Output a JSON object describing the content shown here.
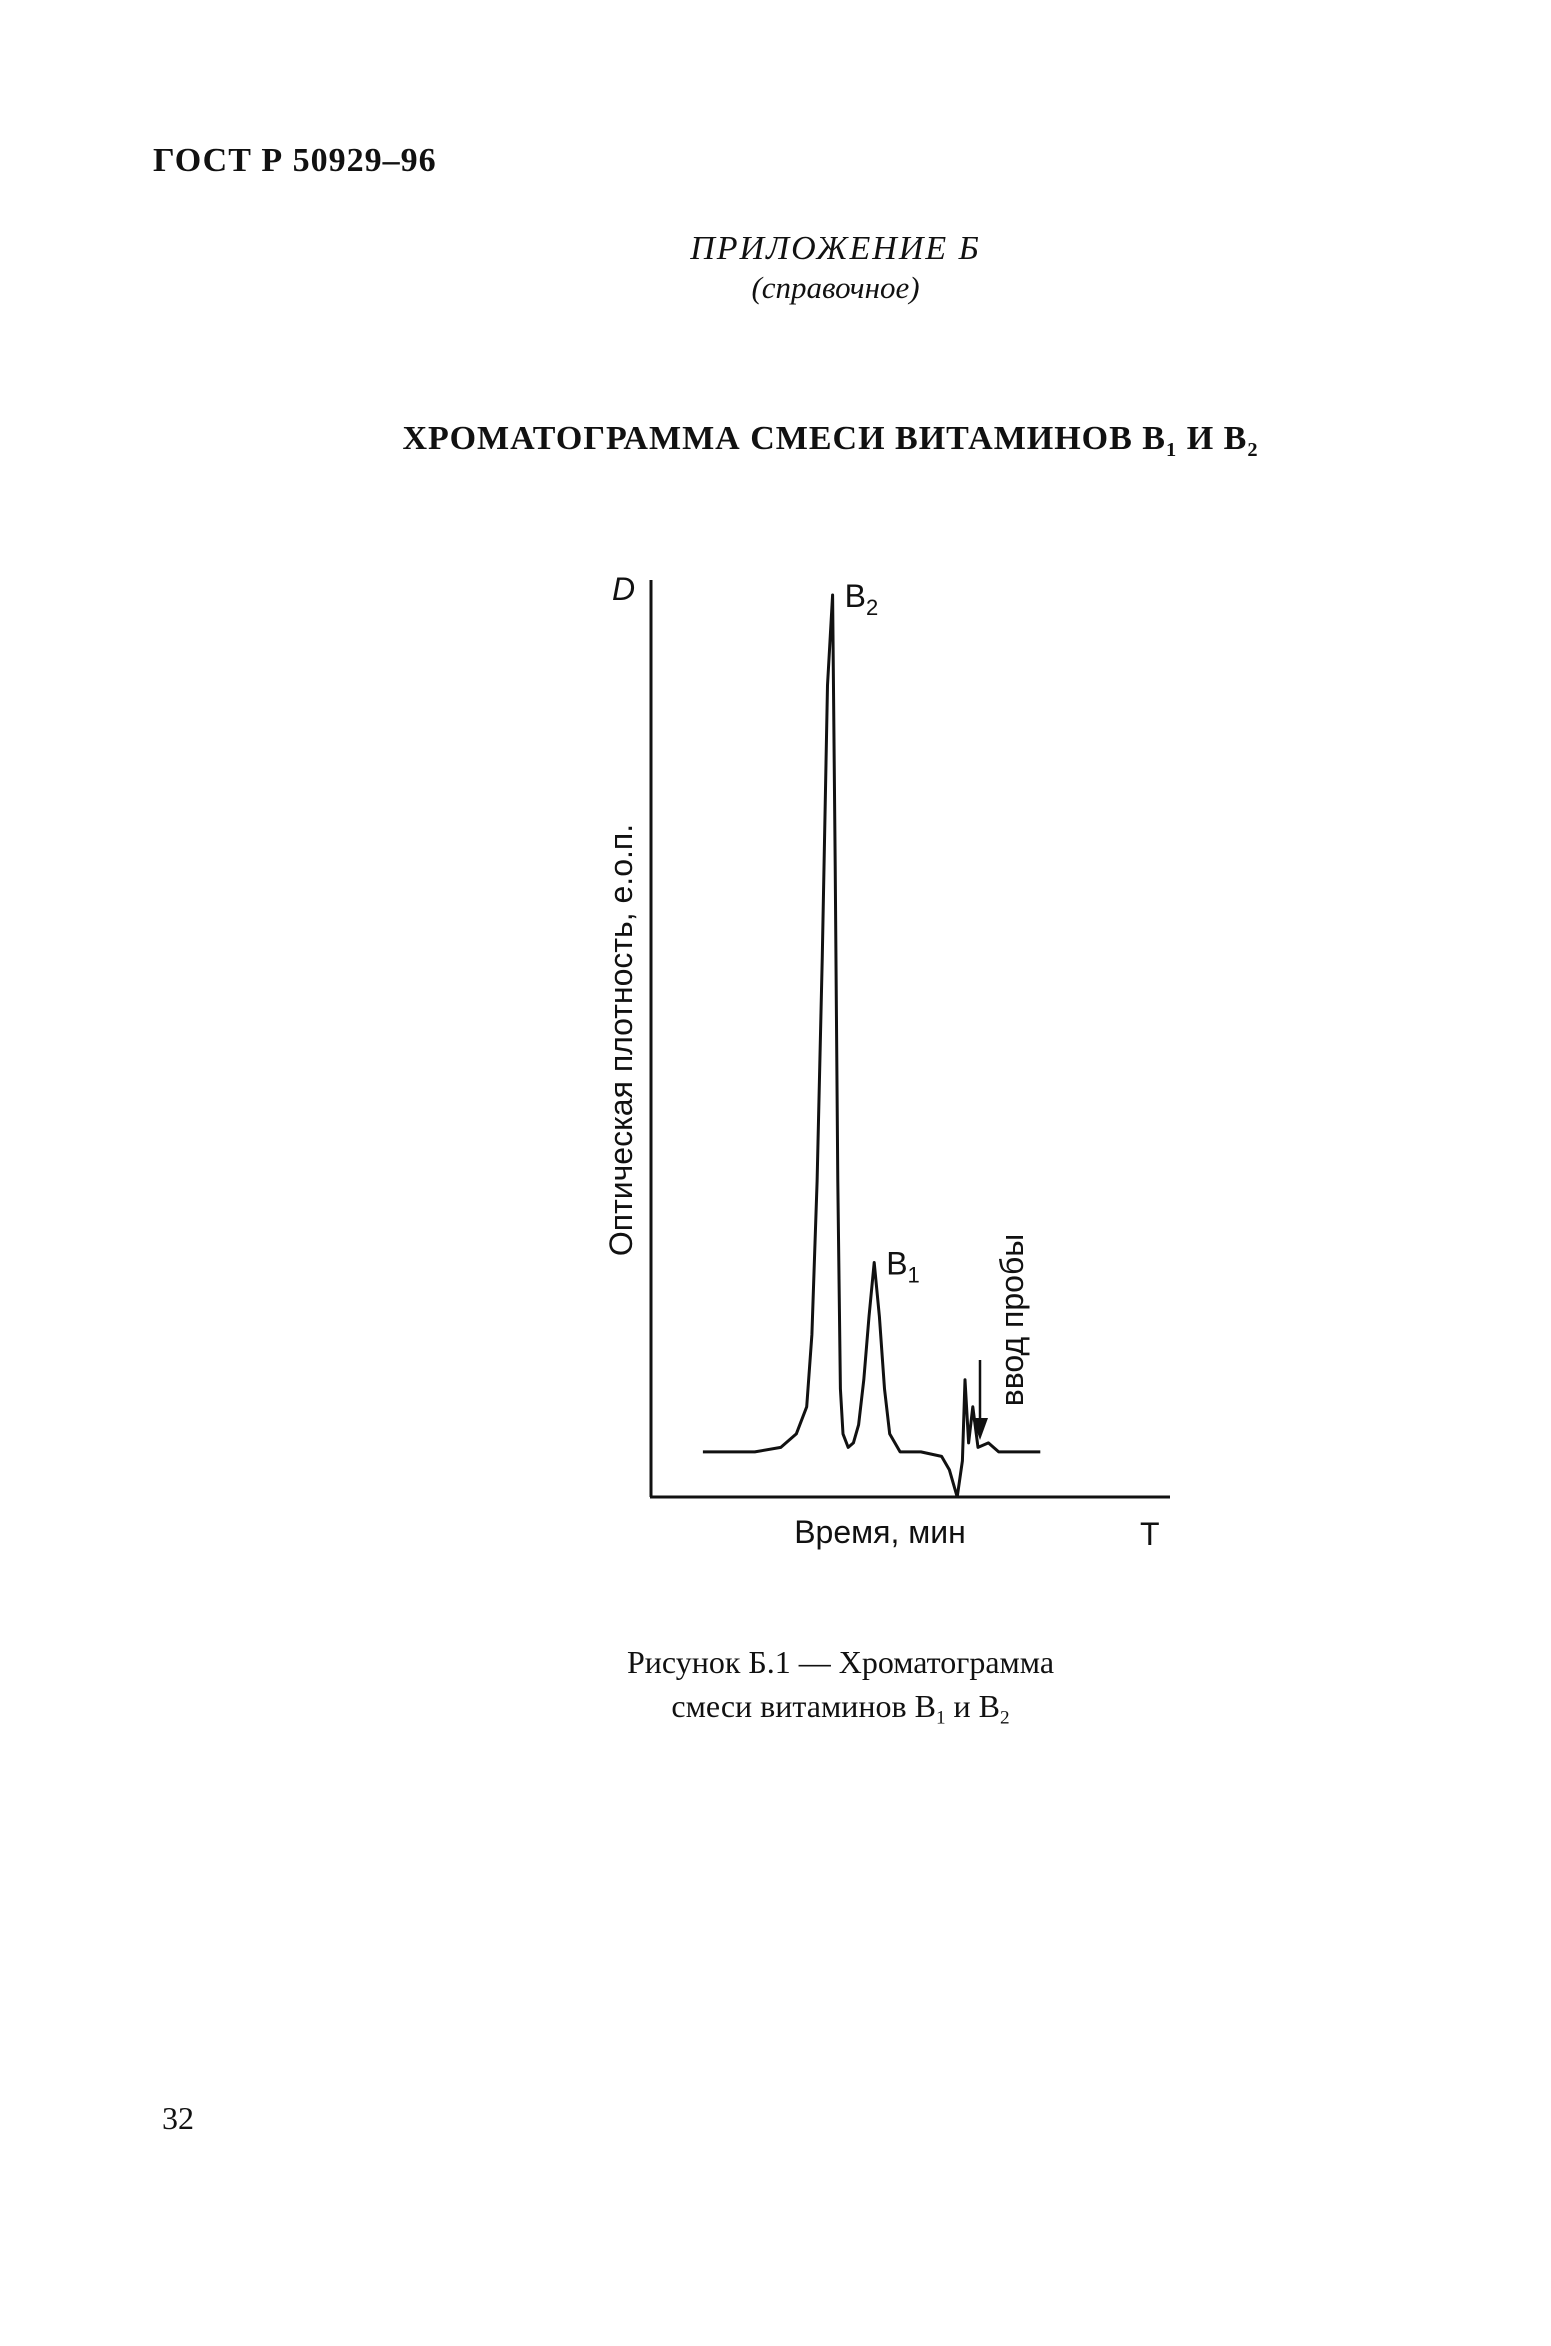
{
  "document": {
    "header": "ГОСТ Р 50929–96",
    "appendix_title": "ПРИЛОЖЕНИЕ Б",
    "appendix_subtitle": "(справочное)",
    "title_main": "ХРОМАТОГРАММА СМЕСИ ВИТАМИНОВ В",
    "title_sub1": "1",
    "title_and": " И В",
    "title_sub2": "2",
    "caption_line1": "Рисунок Б.1 — Хроматограмма",
    "caption_line2_a": "смеси витаминов В",
    "caption_sub1": "1",
    "caption_line2_b": " и В",
    "caption_sub2": "2",
    "page_number": "32"
  },
  "chart_data": {
    "type": "line",
    "y_axis_symbol": "D",
    "x_axis_symbol": "T",
    "xlabel": "Время, мин",
    "ylabel": "Оптическая плотность, е.о.п.",
    "peaks": [
      {
        "label": "В",
        "sub": "2",
        "x": 0.35,
        "y": 1.0
      },
      {
        "label": "В",
        "sub": "1",
        "x": 0.43,
        "y": 0.26
      }
    ],
    "annotations": [
      {
        "text": "ввод пробы",
        "x": 0.69
      }
    ],
    "curve": [
      [
        0.1,
        0.05
      ],
      [
        0.2,
        0.05
      ],
      [
        0.25,
        0.055
      ],
      [
        0.28,
        0.07
      ],
      [
        0.3,
        0.1
      ],
      [
        0.31,
        0.18
      ],
      [
        0.32,
        0.35
      ],
      [
        0.33,
        0.6
      ],
      [
        0.34,
        0.9
      ],
      [
        0.35,
        1.0
      ],
      [
        0.355,
        0.7
      ],
      [
        0.36,
        0.35
      ],
      [
        0.365,
        0.12
      ],
      [
        0.37,
        0.07
      ],
      [
        0.38,
        0.055
      ],
      [
        0.39,
        0.06
      ],
      [
        0.4,
        0.08
      ],
      [
        0.41,
        0.13
      ],
      [
        0.42,
        0.2
      ],
      [
        0.43,
        0.26
      ],
      [
        0.44,
        0.2
      ],
      [
        0.45,
        0.12
      ],
      [
        0.46,
        0.07
      ],
      [
        0.48,
        0.05
      ],
      [
        0.52,
        0.05
      ],
      [
        0.56,
        0.045
      ],
      [
        0.575,
        0.03
      ],
      [
        0.59,
        0.0
      ],
      [
        0.6,
        0.04
      ],
      [
        0.605,
        0.13
      ],
      [
        0.612,
        0.06
      ],
      [
        0.62,
        0.1
      ],
      [
        0.63,
        0.055
      ],
      [
        0.65,
        0.06
      ],
      [
        0.67,
        0.05
      ],
      [
        0.75,
        0.05
      ]
    ]
  }
}
